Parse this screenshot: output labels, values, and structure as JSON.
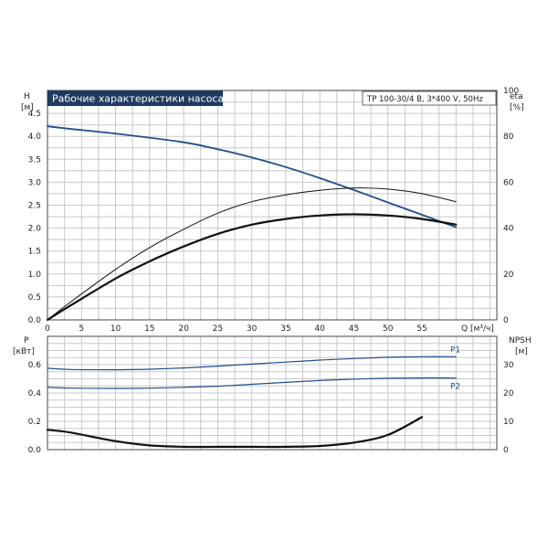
{
  "chart_data": [
    {
      "type": "line",
      "title": "Рабочие характеристики насоса",
      "subtitle": "TP 100-30/4 B, 3*400 V, 50Hz",
      "ylabel_left": [
        "H",
        "[м]"
      ],
      "ylabel_right": [
        "eta",
        "[%]"
      ],
      "xlabel": "Q [м³/ч]",
      "xlim": [
        0,
        66
      ],
      "ylim_left": [
        0,
        5
      ],
      "ylim_right": [
        0,
        100
      ],
      "x_ticks": [
        0,
        5,
        10,
        15,
        20,
        25,
        30,
        35,
        40,
        45,
        50,
        55
      ],
      "y_ticks_left": [
        "0.0",
        "0.5",
        "1.0",
        "1.5",
        "2.0",
        "2.5",
        "3.0",
        "3.5",
        "4.0",
        "4.5"
      ],
      "y_ticks_right": [
        "0",
        "20",
        "40",
        "60",
        "80",
        "100"
      ],
      "grid": true,
      "series": [
        {
          "axis": "left",
          "color": "#1f4e8c",
          "x": [
            0,
            3.5,
            10,
            20,
            25,
            30,
            35,
            40,
            45,
            50,
            55,
            60
          ],
          "y": [
            4.22,
            4.16,
            4.06,
            3.87,
            3.72,
            3.54,
            3.33,
            3.09,
            2.83,
            2.56,
            2.29,
            2.02
          ]
        },
        {
          "axis": "right",
          "color": "#111111",
          "width": 1,
          "x": [
            0,
            3.5,
            10,
            15,
            20,
            25,
            30,
            35,
            40,
            45,
            50,
            55,
            60
          ],
          "y": [
            0,
            8,
            22,
            31.5,
            39.5,
            46.5,
            51.5,
            54.5,
            56.5,
            57.5,
            57,
            55,
            51.5
          ]
        },
        {
          "axis": "right",
          "color": "#111111",
          "width": 2.2,
          "x": [
            0,
            3.5,
            10,
            15,
            20,
            25,
            30,
            35,
            40,
            45,
            50,
            55,
            60
          ],
          "y": [
            0,
            6.5,
            18,
            25.5,
            32,
            37.5,
            41.5,
            44,
            45.5,
            46,
            45.5,
            44,
            41.5
          ]
        }
      ]
    },
    {
      "type": "line",
      "ylabel_left": [
        "P",
        "[кВт]"
      ],
      "ylabel_right": [
        "NPSH",
        "[м]"
      ],
      "xlim": [
        0,
        66
      ],
      "ylim_left": [
        0,
        0.8
      ],
      "ylim_right": [
        0,
        40
      ],
      "y_ticks_left": [
        "0.0",
        "0.2",
        "0.4",
        "0.6"
      ],
      "y_ticks_right": [
        "0",
        "10",
        "20",
        "30"
      ],
      "grid": true,
      "series": [
        {
          "name": "P1",
          "axis": "left",
          "color": "#1f4e8c",
          "x": [
            0,
            3.5,
            10,
            15,
            20,
            25,
            30,
            35,
            40,
            45,
            50,
            55,
            60
          ],
          "y": [
            0.575,
            0.566,
            0.564,
            0.568,
            0.577,
            0.59,
            0.604,
            0.618,
            0.632,
            0.643,
            0.652,
            0.656,
            0.656
          ]
        },
        {
          "name": "P2",
          "axis": "left",
          "color": "#1f4e8c",
          "x": [
            0,
            3.5,
            10,
            15,
            20,
            25,
            30,
            35,
            40,
            45,
            50,
            55,
            60
          ],
          "y": [
            0.44,
            0.434,
            0.432,
            0.434,
            0.44,
            0.448,
            0.461,
            0.475,
            0.488,
            0.498,
            0.504,
            0.506,
            0.505
          ]
        },
        {
          "axis": "right",
          "color": "#111111",
          "width": 2.2,
          "x": [
            0,
            3.5,
            10,
            15,
            20,
            25,
            30,
            35,
            40,
            45,
            50,
            55
          ],
          "y": [
            7.0,
            6.0,
            3.0,
            1.5,
            1.0,
            1.0,
            1.0,
            1.0,
            1.3,
            2.5,
            5.2,
            11.5
          ]
        }
      ]
    }
  ]
}
